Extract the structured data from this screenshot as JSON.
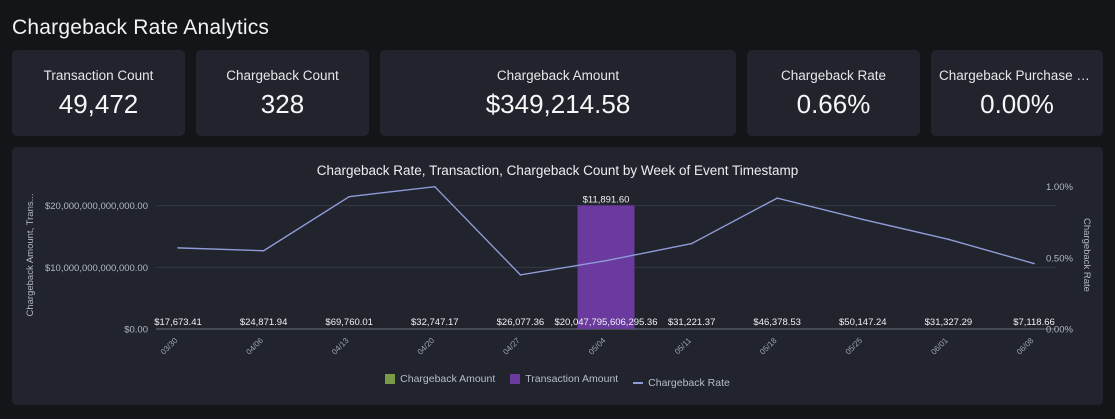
{
  "page": {
    "title": "Chargeback Rate Analytics"
  },
  "kpis": [
    {
      "label": "Transaction Count",
      "value": "49,472"
    },
    {
      "label": "Chargeback Count",
      "value": "328"
    },
    {
      "label": "Chargeback Amount",
      "value": "$349,214.58"
    },
    {
      "label": "Chargeback Rate",
      "value": "0.66%"
    },
    {
      "label": "Chargeback Purchase Rate",
      "value": "0.00%"
    }
  ],
  "legend": {
    "chargeback_amount": "Chargeback Amount",
    "transaction_amount": "Transaction Amount",
    "chargeback_rate": "Chargeback Rate"
  },
  "colors": {
    "chargeback_amount": "#7a9a45",
    "transaction_amount": "#6a3a9e",
    "chargeback_rate": "#8f9bd8"
  },
  "chart_data": {
    "type": "bar",
    "title": "Chargeback Rate, Transaction, Chargeback Count by Week of Event Timestamp",
    "ylabel_left": "Chargeback Amount, Trans...",
    "ylabel_right": "Chargeback Rate",
    "categories": [
      "03/30",
      "04/06",
      "04/13",
      "04/20",
      "04/27",
      "05/04",
      "05/11",
      "05/18",
      "05/25",
      "06/01",
      "06/08"
    ],
    "y_left_ticks": [
      "$0.00",
      "$10,000,000,000,000.00",
      "$20,000,000,000,000.00"
    ],
    "y_left_max": 24000000000000,
    "y_right_ticks": [
      "0.00%",
      "0.50%",
      "1.00%"
    ],
    "y_right_max": 1.04,
    "series": [
      {
        "name": "Chargeback Amount",
        "kind": "bar",
        "axis": "left",
        "values": [
          17673.41,
          24871.94,
          69760.01,
          32747.17,
          26077.36,
          11891.6,
          31221.37,
          46378.53,
          50147.24,
          31327.29,
          7118.66
        ],
        "labels": [
          "$17,673.41",
          "$24,871.94",
          "$69,760.01",
          "$32,747.17",
          "$26,077.36",
          "$11,891.60",
          "$31,221.37",
          "$46,378.53",
          "$50,147.24",
          "$31,327.29",
          "$7,118.66"
        ]
      },
      {
        "name": "Transaction Amount",
        "kind": "bar",
        "axis": "left",
        "values": [
          null,
          null,
          null,
          null,
          null,
          20047795606295.36,
          null,
          null,
          null,
          null,
          null
        ],
        "labels": [
          "",
          "",
          "",
          "",
          "",
          "$20,047,795,606,295.36",
          "",
          "",
          "",
          "",
          ""
        ]
      },
      {
        "name": "Chargeback Rate",
        "kind": "line",
        "axis": "right",
        "values": [
          0.57,
          0.55,
          0.93,
          1.0,
          0.38,
          0.48,
          0.6,
          0.92,
          0.77,
          0.63,
          0.46
        ]
      }
    ]
  }
}
